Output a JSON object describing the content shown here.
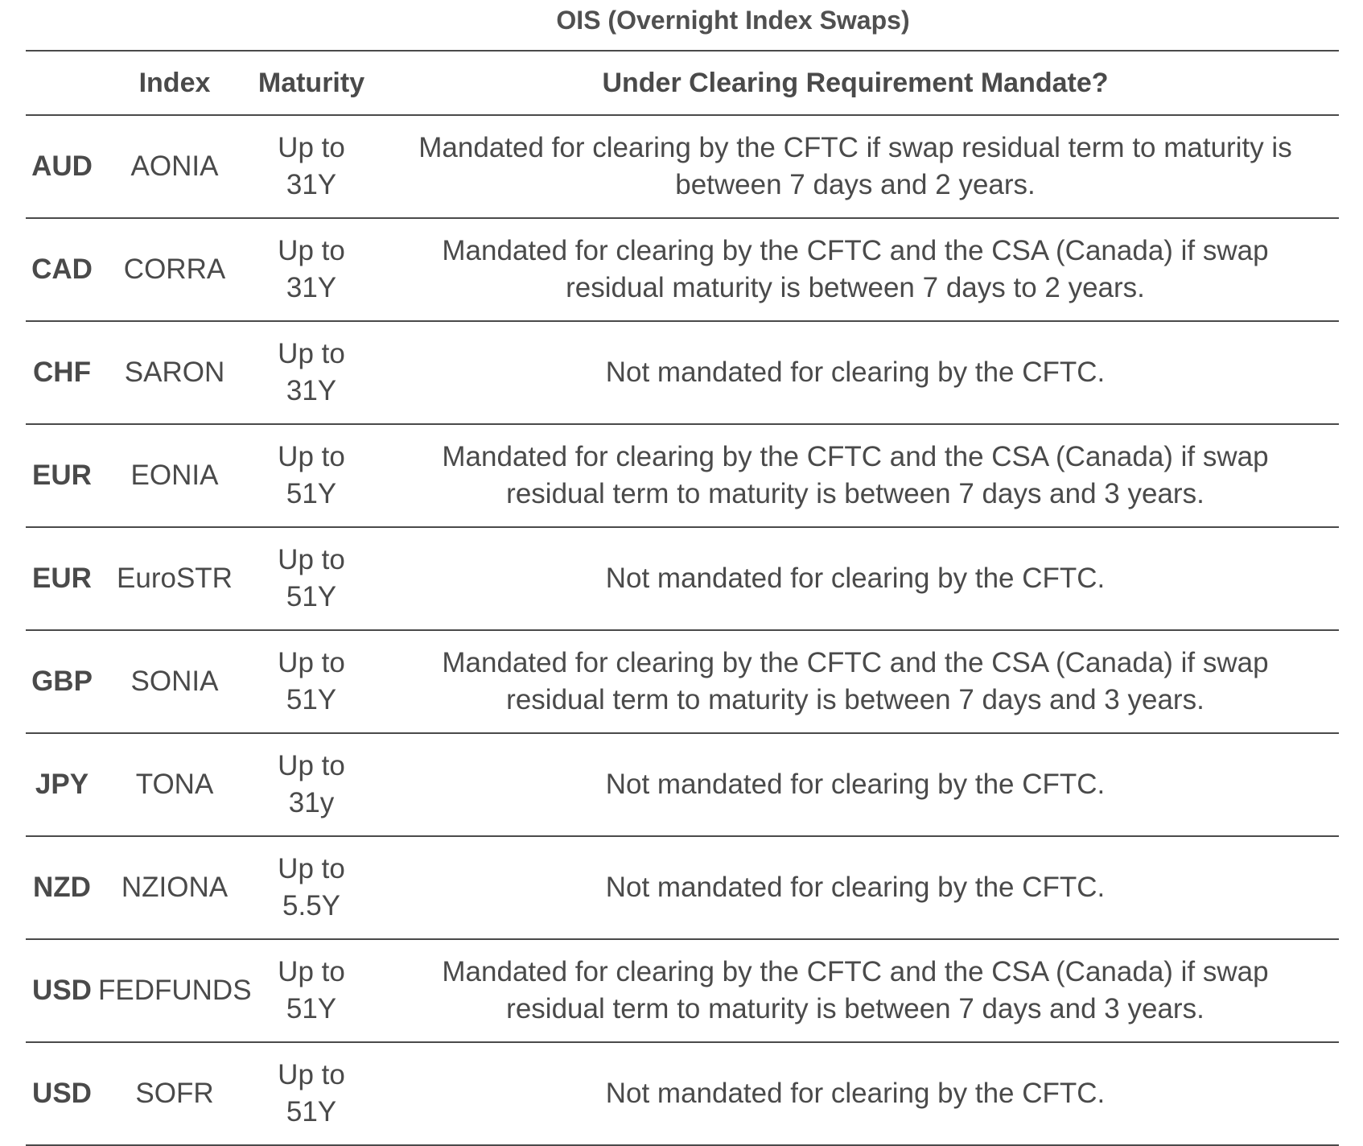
{
  "title": "OIS (Overnight Index Swaps)",
  "headers": {
    "currency": "",
    "index": "Index",
    "maturity": "Maturity",
    "mandate": "Under Clearing Requirement Mandate?"
  },
  "rows": [
    {
      "currency": "AUD",
      "index": "AONIA",
      "maturity": [
        "Up to",
        "31Y"
      ],
      "mandate": [
        "Mandated for clearing by the CFTC if swap residual term to maturity is",
        "between 7 days and 2 years."
      ]
    },
    {
      "currency": "CAD",
      "index": "CORRA",
      "maturity": [
        "Up to",
        "31Y"
      ],
      "mandate": [
        "Mandated for clearing by the CFTC and the CSA (Canada) if swap",
        "residual maturity is between 7 days to 2 years."
      ]
    },
    {
      "currency": "CHF",
      "index": "SARON",
      "maturity": [
        "Up to",
        "31Y"
      ],
      "mandate": [
        "Not mandated for clearing by the CFTC.",
        ""
      ]
    },
    {
      "currency": "EUR",
      "index": "EONIA",
      "maturity": [
        "Up to",
        "51Y"
      ],
      "mandate": [
        "Mandated for clearing by the CFTC and the CSA (Canada) if swap",
        "residual term to maturity is between 7 days and 3 years."
      ]
    },
    {
      "currency": "EUR",
      "index": "EuroSTR",
      "maturity": [
        "Up to",
        "51Y"
      ],
      "mandate": [
        "Not mandated for clearing by the CFTC.",
        ""
      ]
    },
    {
      "currency": "GBP",
      "index": "SONIA",
      "maturity": [
        "Up to",
        "51Y"
      ],
      "mandate": [
        "Mandated for clearing by the CFTC and the CSA (Canada) if swap",
        "residual term to maturity is between 7 days and 3 years."
      ]
    },
    {
      "currency": "JPY",
      "index": "TONA",
      "maturity": [
        "Up to",
        "31y"
      ],
      "mandate": [
        "Not mandated for clearing by the CFTC.",
        ""
      ]
    },
    {
      "currency": "NZD",
      "index": "NZIONA",
      "maturity": [
        "Up to",
        "5.5Y"
      ],
      "mandate": [
        "Not mandated for clearing by the CFTC.",
        ""
      ]
    },
    {
      "currency": "USD",
      "index": "FEDFUNDS",
      "maturity": [
        "Up to",
        "51Y"
      ],
      "mandate": [
        "Mandated for clearing by the CFTC and the CSA (Canada) if swap",
        "residual term to maturity is between 7 days and 3 years."
      ]
    },
    {
      "currency": "USD",
      "index": "SOFR",
      "maturity": [
        "Up to",
        "51Y"
      ],
      "mandate": [
        "Not mandated for clearing by the CFTC.",
        ""
      ]
    }
  ]
}
